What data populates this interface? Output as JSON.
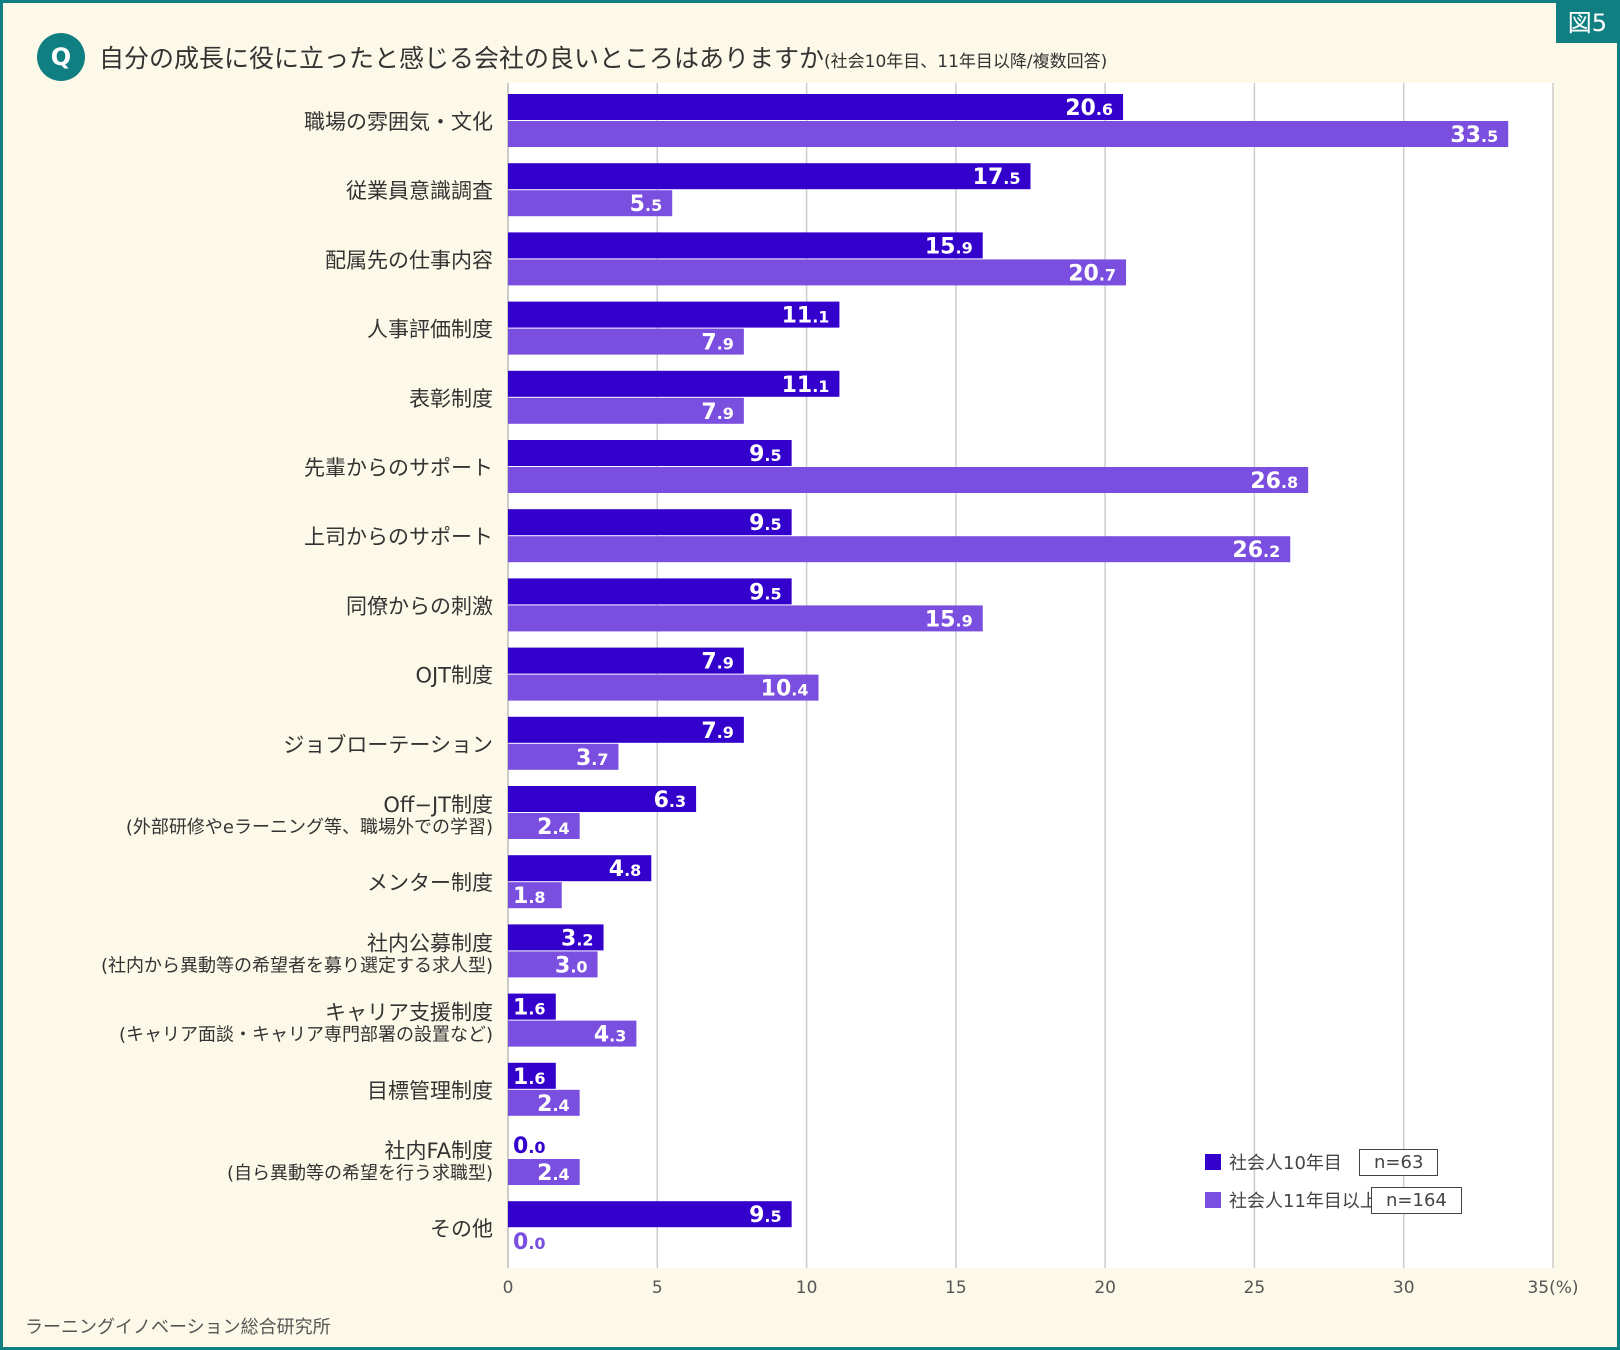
{
  "figure_tag": "図5",
  "question_badge": "Q",
  "title_main": "自分の成長に役に立ったと感じる会社の良いところはありますか",
  "title_sub": "(社会10年目、11年目以降/複数回答)",
  "source": "ラーニングイノベーション総合研究所",
  "colors": {
    "series1": "#3300cc",
    "series2": "#7a4fdf",
    "accent": "#0f7f82",
    "grid": "#cccccc"
  },
  "legend": {
    "items": [
      {
        "label": "社会人10年目",
        "n": "n=63"
      },
      {
        "label": "社会人11年目以上",
        "n": "n=164"
      }
    ]
  },
  "chart_data": {
    "type": "bar",
    "orientation": "horizontal",
    "categories": [
      [
        "職場の雰囲気・文化"
      ],
      [
        "従業員意識調査"
      ],
      [
        "配属先の仕事内容"
      ],
      [
        "人事評価制度"
      ],
      [
        "表彰制度"
      ],
      [
        "先輩からのサポート"
      ],
      [
        "上司からのサポート"
      ],
      [
        "同僚からの刺激"
      ],
      [
        "OJT制度"
      ],
      [
        "ジョブローテーション"
      ],
      [
        "Off−JT制度",
        "(外部研修やeラーニング等、職場外での学習)"
      ],
      [
        "メンター制度"
      ],
      [
        "社内公募制度",
        "(社内から異動等の希望者を募り選定する求人型)"
      ],
      [
        "キャリア支援制度",
        "(キャリア面談・キャリア専門部署の設置など)"
      ],
      [
        "目標管理制度"
      ],
      [
        "社内FA制度",
        "(自ら異動等の希望を行う求職型)"
      ],
      [
        "その他"
      ]
    ],
    "series": [
      {
        "name": "社会人10年目",
        "values": [
          20.6,
          17.5,
          15.9,
          11.1,
          11.1,
          9.5,
          9.5,
          9.5,
          7.9,
          7.9,
          6.3,
          4.8,
          3.2,
          1.6,
          1.6,
          0.0,
          9.5
        ]
      },
      {
        "name": "社会人11年目以上",
        "values": [
          33.5,
          5.5,
          20.7,
          7.9,
          7.9,
          26.8,
          26.2,
          15.9,
          10.4,
          3.7,
          2.4,
          1.8,
          3.0,
          4.3,
          2.4,
          2.4,
          0.0
        ]
      }
    ],
    "xlim": [
      0,
      35
    ],
    "xticks": [
      "0",
      "5",
      "10",
      "15",
      "20",
      "25",
      "30",
      "35(%)"
    ],
    "grid": true,
    "legend_position": "bottom-right"
  }
}
